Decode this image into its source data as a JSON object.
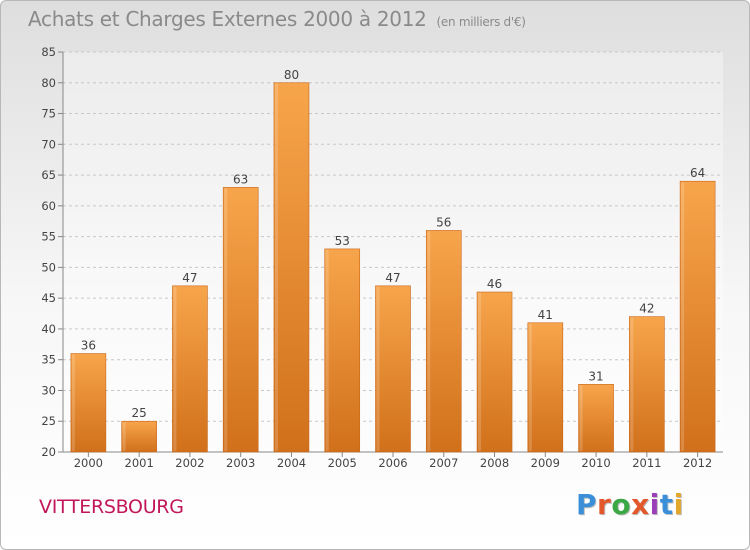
{
  "header": {
    "title": "Achats et Charges Externes 2000 à 2012",
    "subtitle": "(en milliers d'€)"
  },
  "commune": "VITTERSBOURG",
  "logo": {
    "text": "Proxiti",
    "letter_colors": [
      "#3a8fd8",
      "#e2582b",
      "#3aa845",
      "#e2582b",
      "#9a3fb8",
      "#3a8fd8",
      "#e2a72b"
    ]
  },
  "colors": {
    "bar_top": "#f7a54c",
    "bar_bottom": "#d1701b",
    "grid": "#c8c8c8",
    "axis_text": "#444444"
  },
  "chart_data": {
    "type": "bar",
    "title": "Achats et Charges Externes 2000 à 2012",
    "subtitle": "(en milliers d'€)",
    "categories": [
      "2000",
      "2001",
      "2002",
      "2003",
      "2004",
      "2005",
      "2006",
      "2007",
      "2008",
      "2009",
      "2010",
      "2011",
      "2012"
    ],
    "values": [
      36,
      25,
      47,
      63,
      80,
      53,
      47,
      56,
      46,
      41,
      31,
      42,
      64
    ],
    "ylim": [
      20,
      85
    ],
    "yticks": [
      20,
      25,
      30,
      35,
      40,
      45,
      50,
      55,
      60,
      65,
      70,
      75,
      80,
      85
    ],
    "grid": true,
    "xlabel": "",
    "ylabel": ""
  }
}
